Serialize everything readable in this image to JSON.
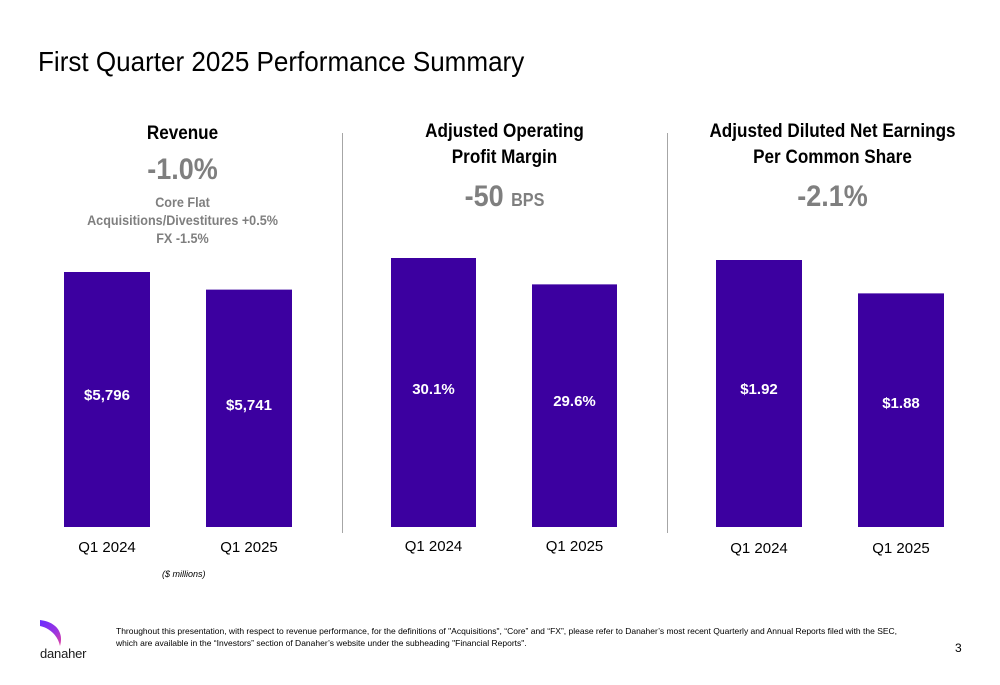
{
  "title": "First Quarter 2025 Performance Summary",
  "colors": {
    "bar": "#3c00a0",
    "metric": "#7f7f7f",
    "divider": "#a6a6a6"
  },
  "panels": [
    {
      "heading": [
        "Revenue"
      ],
      "metric": "-1.0%",
      "metric_unit": "",
      "sub": [
        "Core Flat",
        "Acquisitions/Divestitures +0.5%",
        "FX -1.5%"
      ]
    },
    {
      "heading": [
        "Adjusted Operating",
        "Profit Margin"
      ],
      "metric": "-50",
      "metric_unit": "BPS",
      "sub": []
    },
    {
      "heading": [
        "Adjusted Diluted Net Earnings",
        "Per Common Share"
      ],
      "metric": "-2.1%",
      "metric_unit": "",
      "sub": []
    }
  ],
  "chart_data": [
    {
      "type": "bar",
      "categories": [
        "Q1 2024",
        "Q1 2025"
      ],
      "values": [
        5796,
        5741
      ],
      "labels": [
        "$5,796",
        "$5,741"
      ],
      "unit": "$ millions"
    },
    {
      "type": "bar",
      "categories": [
        "Q1 2024",
        "Q1 2025"
      ],
      "values": [
        30.1,
        29.6
      ],
      "labels": [
        "30.1%",
        "29.6%"
      ]
    },
    {
      "type": "bar",
      "categories": [
        "Q1 2024",
        "Q1 2025"
      ],
      "values": [
        1.92,
        1.88
      ],
      "labels": [
        "$1.92",
        "$1.88"
      ]
    }
  ],
  "units_note": "($ millions)",
  "footnote": "Throughout this presentation, with respect to revenue performance, for the definitions of \"Acquisitions\", “Core” and “FX”, please refer to Danaher’s most recent Quarterly and Annual Reports filed with the SEC, which are available in the “Investors” section of Danaher’s website under the subheading \"Financial Reports\".",
  "page_number": "3",
  "logo_text": "danaher"
}
